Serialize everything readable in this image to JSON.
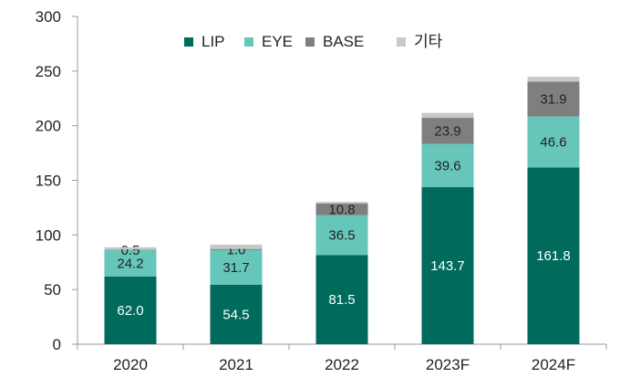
{
  "chart_data": {
    "type": "bar",
    "stacked": true,
    "categories": [
      "2020",
      "2021",
      "2022",
      "2023F",
      "2024F"
    ],
    "series": [
      {
        "name": "LIP",
        "color": "#006b5c",
        "values": [
          62.0,
          54.5,
          81.5,
          143.7,
          161.8
        ],
        "labels": [
          "62.0",
          "54.5",
          "81.5",
          "143.7",
          "161.8"
        ],
        "label_color": "#ffffff"
      },
      {
        "name": "EYE",
        "color": "#66c6ba",
        "values": [
          24.2,
          31.7,
          36.5,
          39.6,
          46.6
        ],
        "labels": [
          "24.2",
          "31.7",
          "36.5",
          "39.6",
          "46.6"
        ],
        "label_color": "#222222"
      },
      {
        "name": "BASE",
        "color": "#7f7f7f",
        "values": [
          0.5,
          1.0,
          10.8,
          23.9,
          31.9
        ],
        "labels": [
          "0.5",
          "1.0",
          "10.8",
          "23.9",
          "31.9"
        ],
        "label_color": "#222222"
      },
      {
        "name": "기타",
        "color": "#c8c8c8",
        "values": [
          2.0,
          4.0,
          1.5,
          4.5,
          4.5
        ],
        "labels": [
          "",
          "",
          "",
          "",
          ""
        ],
        "label_color": "#222222"
      }
    ],
    "yticks": [
      "0",
      "50",
      "100",
      "150",
      "200",
      "250",
      "300"
    ],
    "ylim": [
      0,
      300
    ],
    "grid": false,
    "legend_position": "top-center"
  }
}
